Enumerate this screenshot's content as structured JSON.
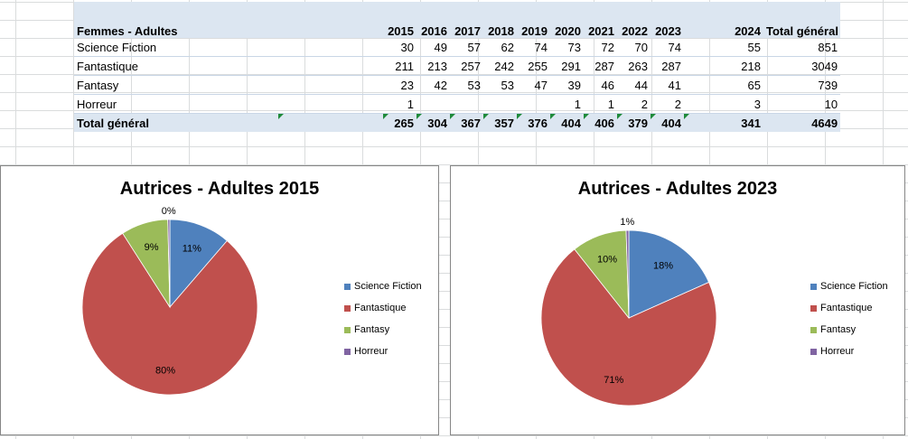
{
  "table": {
    "row_header": "Femmes - Adultes",
    "years": [
      "2015",
      "2016",
      "2017",
      "2018",
      "2019",
      "2020",
      "2021",
      "2022",
      "2023",
      "2024"
    ],
    "total_label": "Total général",
    "rows": [
      {
        "label": "Science Fiction",
        "values": [
          "30",
          "49",
          "57",
          "62",
          "74",
          "73",
          "72",
          "70",
          "74",
          "55"
        ],
        "total": "851"
      },
      {
        "label": "Fantastique",
        "values": [
          "211",
          "213",
          "257",
          "242",
          "255",
          "291",
          "287",
          "263",
          "287",
          "218"
        ],
        "total": "3049"
      },
      {
        "label": "Fantasy",
        "values": [
          "23",
          "42",
          "53",
          "53",
          "47",
          "39",
          "46",
          "44",
          "41",
          "65"
        ],
        "total": "739"
      },
      {
        "label": "Horreur",
        "values": [
          "1",
          "",
          "",
          "",
          "",
          "1",
          "1",
          "2",
          "2",
          "3"
        ],
        "total": "10"
      }
    ],
    "grand_total": {
      "label": "Total général",
      "values": [
        "265",
        "304",
        "367",
        "357",
        "376",
        "404",
        "406",
        "379",
        "404",
        "341"
      ],
      "total": "4649"
    }
  },
  "chart_data": [
    {
      "type": "pie",
      "title": "Autrices - Adultes 2015",
      "categories": [
        "Science Fiction",
        "Fantastique",
        "Fantasy",
        "Horreur"
      ],
      "values": [
        30,
        211,
        23,
        1
      ],
      "labels": [
        "11%",
        "80%",
        "9%",
        "0%"
      ],
      "colors": [
        "#4f81bd",
        "#c0504d",
        "#9bbb59",
        "#8064a2"
      ],
      "legend": "right"
    },
    {
      "type": "pie",
      "title": "Autrices - Adultes 2023",
      "categories": [
        "Science Fiction",
        "Fantastique",
        "Fantasy",
        "Horreur"
      ],
      "values": [
        74,
        287,
        41,
        2
      ],
      "labels": [
        "18%",
        "71%",
        "10%",
        "1%"
      ],
      "colors": [
        "#4f81bd",
        "#c0504d",
        "#9bbb59",
        "#8064a2"
      ],
      "legend": "right"
    }
  ]
}
